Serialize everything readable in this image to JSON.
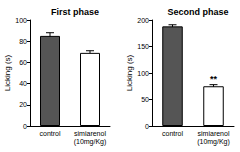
{
  "chart_data": [
    {
      "type": "bar",
      "title": "First phase",
      "y_label": "Licking (s)",
      "categories": [
        "control",
        "simiarenol\n(10mg/Kg)"
      ],
      "values": [
        85,
        69
      ],
      "errors": [
        3,
        2
      ],
      "colors": [
        "#555555",
        "#ffffff"
      ],
      "ylim": [
        0,
        100
      ],
      "yticks": [
        0,
        20,
        40,
        60,
        80,
        100
      ],
      "grid": false
    },
    {
      "type": "bar",
      "title": "Second phase",
      "y_label": "Licking (s)",
      "categories": [
        "control",
        "simiarenol\n(10mg/Kg)"
      ],
      "values": [
        188,
        75
      ],
      "errors": [
        3,
        3
      ],
      "colors": [
        "#555555",
        "#ffffff"
      ],
      "ylim": [
        0,
        200
      ],
      "yticks": [
        0,
        50,
        100,
        150,
        200
      ],
      "grid": false,
      "annotations": [
        {
          "category": "simiarenol\n(10mg/Kg)",
          "text": "**"
        }
      ]
    }
  ]
}
